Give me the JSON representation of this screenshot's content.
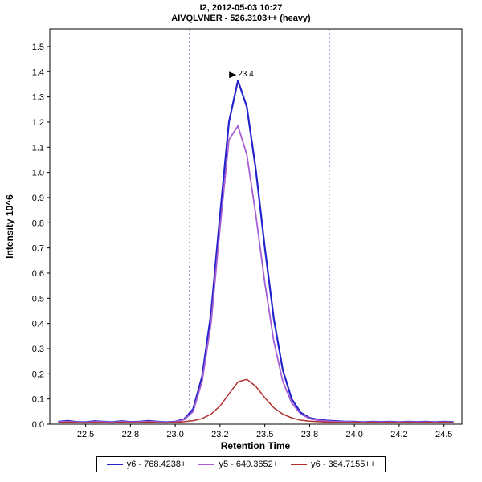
{
  "chart_data": {
    "type": "line",
    "title": "I2, 2012-05-03 10:27",
    "subtitle": "AIVQLVNER - 526.3103++ (heavy)",
    "xlabel": "Retention Time",
    "ylabel": "Intensity 10^6",
    "xlim": [
      22.3,
      24.6
    ],
    "ylim": [
      0,
      1.57
    ],
    "grid": false,
    "legend_position": "bottom",
    "xticks": [
      22.5,
      22.75,
      23.0,
      23.25,
      23.5,
      23.75,
      24.0,
      24.25,
      24.5
    ],
    "xtick_labels": [
      "22.5",
      "22.8",
      "23.0",
      "23.2",
      "23.5",
      "23.8",
      "24.0",
      "24.2",
      "24.5"
    ],
    "yticks": [
      0.0,
      0.1,
      0.2,
      0.3,
      0.4,
      0.5,
      0.6,
      0.7,
      0.8,
      0.9,
      1.0,
      1.1,
      1.2,
      1.3,
      1.4,
      1.5
    ],
    "integration_boundaries": [
      23.08,
      23.86
    ],
    "boundary_color": "#5555aa",
    "peak_annotation": {
      "label": "23.4",
      "x": 23.35,
      "y": 1.365,
      "text_color": "#00008b",
      "arrow_color": "#000000"
    },
    "series": [
      {
        "name": "y6 - 768.4238+",
        "color": "#2323cc",
        "width": 2.2,
        "x": [
          22.35,
          22.4,
          22.45,
          22.5,
          22.55,
          22.6,
          22.65,
          22.7,
          22.75,
          22.8,
          22.85,
          22.9,
          22.95,
          23.0,
          23.05,
          23.1,
          23.15,
          23.2,
          23.25,
          23.3,
          23.35,
          23.4,
          23.45,
          23.5,
          23.55,
          23.6,
          23.65,
          23.7,
          23.75,
          23.8,
          23.85,
          23.9,
          23.95,
          24.0,
          24.05,
          24.1,
          24.15,
          24.2,
          24.25,
          24.3,
          24.35,
          24.4,
          24.45,
          24.5,
          24.55
        ],
        "y": [
          0.01,
          0.013,
          0.009,
          0.008,
          0.012,
          0.01,
          0.008,
          0.012,
          0.009,
          0.01,
          0.013,
          0.01,
          0.008,
          0.01,
          0.02,
          0.06,
          0.19,
          0.44,
          0.83,
          1.2,
          1.365,
          1.26,
          1.01,
          0.7,
          0.42,
          0.215,
          0.1,
          0.046,
          0.025,
          0.018,
          0.014,
          0.012,
          0.01,
          0.01,
          0.008,
          0.01,
          0.009,
          0.01,
          0.008,
          0.01,
          0.009,
          0.01,
          0.008,
          0.01,
          0.009
        ]
      },
      {
        "name": "y5 - 640.3652+",
        "color": "#a75fd3",
        "width": 1.8,
        "x": [
          22.35,
          22.4,
          22.45,
          22.5,
          22.55,
          22.6,
          22.65,
          22.7,
          22.75,
          22.8,
          22.85,
          22.9,
          22.95,
          23.0,
          23.05,
          23.1,
          23.15,
          23.2,
          23.25,
          23.3,
          23.35,
          23.4,
          23.45,
          23.5,
          23.55,
          23.6,
          23.65,
          23.7,
          23.75,
          23.8,
          23.85,
          23.9,
          23.95,
          24.0,
          24.05,
          24.1,
          24.15,
          24.2,
          24.25,
          24.3,
          24.35,
          24.4,
          24.45,
          24.5,
          24.55
        ],
        "y": [
          0.009,
          0.011,
          0.008,
          0.007,
          0.01,
          0.009,
          0.007,
          0.01,
          0.008,
          0.009,
          0.011,
          0.009,
          0.007,
          0.009,
          0.018,
          0.05,
          0.17,
          0.4,
          0.78,
          1.13,
          1.185,
          1.07,
          0.83,
          0.56,
          0.33,
          0.17,
          0.085,
          0.04,
          0.022,
          0.015,
          0.012,
          0.01,
          0.009,
          0.009,
          0.007,
          0.009,
          0.008,
          0.009,
          0.007,
          0.009,
          0.008,
          0.009,
          0.007,
          0.009,
          0.008
        ]
      },
      {
        "name": "y6 - 384.7155++",
        "color": "#b03030",
        "width": 1.5,
        "x": [
          22.35,
          22.4,
          22.45,
          22.5,
          22.55,
          22.6,
          22.65,
          22.7,
          22.75,
          22.8,
          22.85,
          22.9,
          22.95,
          23.0,
          23.05,
          23.1,
          23.15,
          23.2,
          23.25,
          23.3,
          23.35,
          23.4,
          23.45,
          23.5,
          23.55,
          23.6,
          23.65,
          23.7,
          23.75,
          23.8,
          23.85,
          23.9,
          23.95,
          24.0,
          24.05,
          24.1,
          24.15,
          24.2,
          24.25,
          24.3,
          24.35,
          24.4,
          24.45,
          24.5,
          24.55
        ],
        "y": [
          0.006,
          0.008,
          0.006,
          0.005,
          0.007,
          0.006,
          0.005,
          0.007,
          0.006,
          0.006,
          0.008,
          0.006,
          0.005,
          0.007,
          0.01,
          0.014,
          0.022,
          0.04,
          0.072,
          0.12,
          0.168,
          0.178,
          0.15,
          0.105,
          0.065,
          0.04,
          0.025,
          0.016,
          0.012,
          0.01,
          0.008,
          0.007,
          0.006,
          0.007,
          0.006,
          0.007,
          0.006,
          0.007,
          0.006,
          0.007,
          0.006,
          0.007,
          0.006,
          0.007,
          0.006
        ]
      }
    ]
  }
}
